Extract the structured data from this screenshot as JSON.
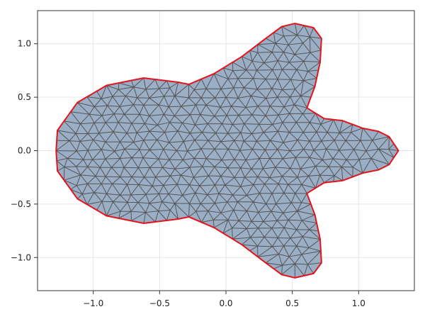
{
  "chart_data": {
    "type": "mesh",
    "xlim": [
      -1.42,
      1.42
    ],
    "ylim": [
      -1.31,
      1.31
    ],
    "grid": true,
    "x_ticks": [
      -1.0,
      -0.5,
      0.0,
      0.5,
      1.0
    ],
    "y_ticks": [
      -1.0,
      -0.5,
      0.0,
      0.5,
      1.0
    ],
    "x_tick_labels": [
      "−1.0",
      "−0.5",
      "0.0",
      "0.5",
      "1.0"
    ],
    "y_tick_labels": [
      "−1.0",
      "−0.5",
      "0.0",
      "0.5",
      "1.0"
    ],
    "boundary": [
      [
        1.3,
        0.0
      ],
      [
        1.23,
        0.13
      ],
      [
        1.15,
        0.18
      ],
      [
        1.03,
        0.21
      ],
      [
        0.88,
        0.28
      ],
      [
        0.74,
        0.3
      ],
      [
        0.61,
        0.4
      ],
      [
        0.67,
        0.6
      ],
      [
        0.71,
        0.83
      ],
      [
        0.72,
        1.05
      ],
      [
        0.66,
        1.15
      ],
      [
        0.52,
        1.19
      ],
      [
        0.42,
        1.16
      ],
      [
        0.3,
        1.05
      ],
      [
        0.12,
        0.88
      ],
      [
        -0.09,
        0.72
      ],
      [
        -0.28,
        0.62
      ],
      [
        -0.36,
        0.64
      ],
      [
        -0.62,
        0.68
      ],
      [
        -0.9,
        0.61
      ],
      [
        -1.12,
        0.45
      ],
      [
        -1.27,
        0.19
      ],
      [
        -1.28,
        0.0
      ],
      [
        -1.27,
        -0.19
      ],
      [
        -1.12,
        -0.45
      ],
      [
        -0.9,
        -0.61
      ],
      [
        -0.62,
        -0.68
      ],
      [
        -0.36,
        -0.64
      ],
      [
        -0.28,
        -0.62
      ],
      [
        -0.09,
        -0.72
      ],
      [
        0.12,
        -0.88
      ],
      [
        0.3,
        -1.05
      ],
      [
        0.42,
        -1.16
      ],
      [
        0.52,
        -1.19
      ],
      [
        0.66,
        -1.15
      ],
      [
        0.72,
        -1.05
      ],
      [
        0.71,
        -0.83
      ],
      [
        0.67,
        -0.6
      ],
      [
        0.61,
        -0.4
      ],
      [
        0.74,
        -0.3
      ],
      [
        0.88,
        -0.28
      ],
      [
        1.03,
        -0.21
      ],
      [
        1.15,
        -0.18
      ],
      [
        1.23,
        -0.13
      ]
    ],
    "mesh_spacing": 0.095,
    "colors": {
      "fill": "#9aaec6",
      "mesh_edges": "#555555",
      "boundary": "#e3141b",
      "grid": "#e6e6e6",
      "frame": "#333333"
    }
  }
}
